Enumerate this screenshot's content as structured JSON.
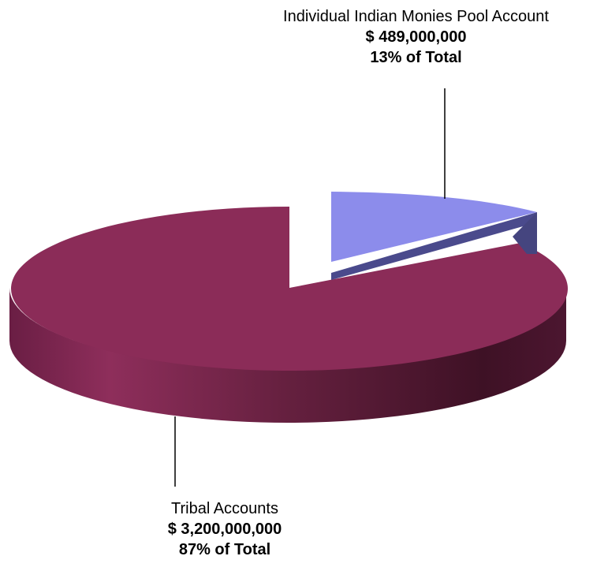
{
  "chart_data": {
    "type": "pie",
    "title": "",
    "slices": [
      {
        "name": "Individual Indian Monies Pool Account",
        "value": 489000000,
        "value_label": "$ 489,000,000",
        "percent": 13,
        "percent_label": "13% of Total",
        "color": "#8c8ceb",
        "side_color": "#4a4a8c",
        "exploded": true
      },
      {
        "name": "Tribal Accounts",
        "value": 3200000000,
        "value_label": "$ 3,200,000,000",
        "percent": 87,
        "percent_label": "87% of Total",
        "color": "#8b2c58",
        "side_color": "#3f1026",
        "exploded": false
      }
    ],
    "style": "3d",
    "legend": "none"
  }
}
